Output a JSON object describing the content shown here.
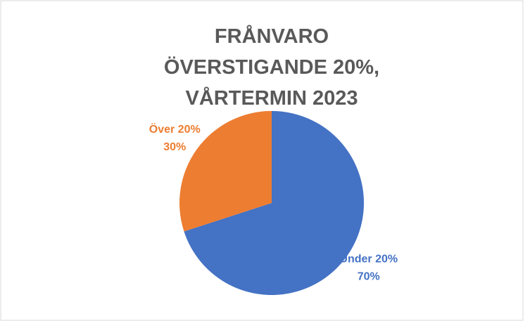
{
  "chart_data": {
    "type": "pie",
    "title": "FRÅNVARO ÖVERSTIGANDE 20%, VÅRTERMIN 2023",
    "categories": [
      "Under 20%",
      "Över 20%"
    ],
    "values": [
      70,
      30
    ],
    "value_labels": [
      "70%",
      "30%"
    ],
    "colors": [
      "#4472c4",
      "#ed7d31"
    ]
  }
}
